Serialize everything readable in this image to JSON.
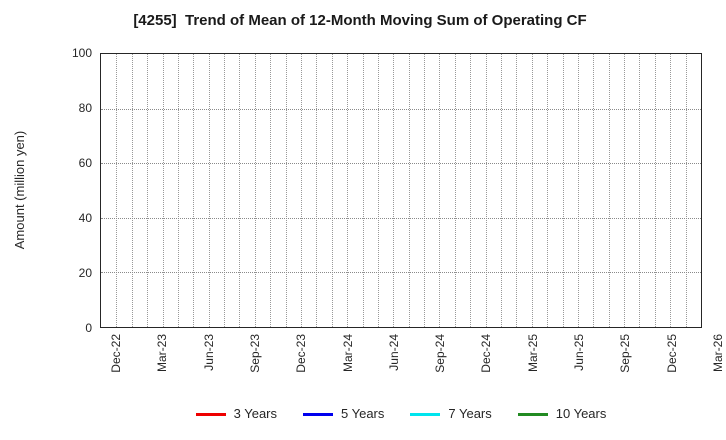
{
  "chart_data": {
    "type": "line",
    "title": "[4255]  Trend of Mean of 12-Month Moving Sum of Operating CF",
    "xlabel": "",
    "ylabel": "Amount (million yen)",
    "ylim": [
      0,
      100
    ],
    "yticks": [
      0,
      20,
      40,
      60,
      80,
      100
    ],
    "x_tick_labels": [
      "Dec-22",
      "Mar-23",
      "Jun-23",
      "Sep-23",
      "Dec-23",
      "Mar-24",
      "Jun-24",
      "Sep-24",
      "Dec-24",
      "Mar-25",
      "Jun-25",
      "Sep-25",
      "Dec-25",
      "Mar-26"
    ],
    "x_months_between_labels": 3,
    "x_total_intervals": 39,
    "grid": true,
    "grid_style": "dotted",
    "gridline_color": "#999999",
    "axis_color": "#262626",
    "legend_position": "bottom",
    "series": [
      {
        "name": "3 Years",
        "color": "#ee0000",
        "values": []
      },
      {
        "name": "5 Years",
        "color": "#0000ee",
        "values": []
      },
      {
        "name": "7 Years",
        "color": "#00e5ee",
        "values": []
      },
      {
        "name": "10 Years",
        "color": "#228b22",
        "values": []
      }
    ]
  }
}
